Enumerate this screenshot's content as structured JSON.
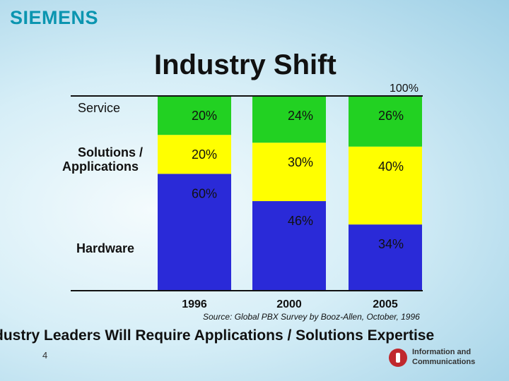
{
  "logo": "SIEMENS",
  "chart_data": {
    "type": "bar",
    "stacked": true,
    "title": "Industry Shift",
    "top_label": "100%",
    "categories": [
      "1996",
      "2000",
      "2005"
    ],
    "series": [
      {
        "name": "Hardware",
        "values": [
          60,
          46,
          34
        ],
        "color": "#2a2ad8"
      },
      {
        "name": "Solutions / Applications",
        "values": [
          20,
          30,
          40
        ],
        "color": "#ffff00"
      },
      {
        "name": "Service",
        "values": [
          20,
          24,
          26
        ],
        "color": "#22d122"
      }
    ],
    "data_labels": [
      [
        "60%",
        "20%",
        "20%"
      ],
      [
        "46%",
        "30%",
        "24%"
      ],
      [
        "34%",
        "40%",
        "26%"
      ]
    ],
    "row_labels": {
      "service": "Service",
      "solutions_line1": "Solutions /",
      "solutions_line2": "Applications",
      "hardware": "Hardware"
    },
    "ylim": [
      0,
      100
    ],
    "grid": false,
    "source": "Source: Global PBX Survey by Booz-Allen, October, 1996"
  },
  "headline": "dustry Leaders Will Require Applications / Solutions Expertise",
  "page_number": "4",
  "brand": {
    "line1": "Information and",
    "line2": "Communications"
  }
}
